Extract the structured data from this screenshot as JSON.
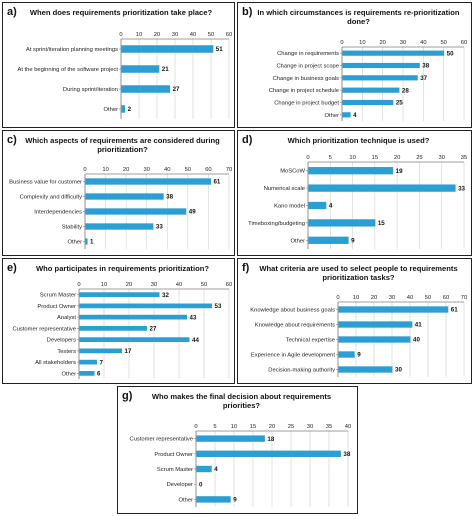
{
  "colors": {
    "bar": "#2b9fd3",
    "axis": "#7f7f7f",
    "border": "#222222"
  },
  "chart_data": [
    {
      "type": "bar",
      "panel": "a)",
      "title": "When does requirements prioritization take place?",
      "categories": [
        "At sprint/iteration planning meetings",
        "At the beginning of the software project",
        "During sprint/iteration",
        "Other"
      ],
      "values": [
        51,
        21,
        27,
        2
      ],
      "xlim": [
        0,
        60
      ],
      "xticks": [
        0,
        10,
        20,
        30,
        40,
        50,
        60
      ],
      "grid": true,
      "orientation": "horizontal"
    },
    {
      "type": "bar",
      "panel": "b)",
      "title": "In which circumstances is requirements re-prioritization done?",
      "categories": [
        "Change in requirements",
        "Change in project scope",
        "Change in business goals",
        "Change in project schedule",
        "Change in project budget",
        "Other"
      ],
      "values": [
        50,
        38,
        37,
        28,
        25,
        4
      ],
      "xlim": [
        0,
        60
      ],
      "xticks": [
        0,
        10,
        20,
        30,
        40,
        50,
        60
      ],
      "grid": true,
      "orientation": "horizontal"
    },
    {
      "type": "bar",
      "panel": "c)",
      "title": "Which aspects of requirements are considered during prioritization?",
      "categories": [
        "Business value for customer",
        "Complexity and difficulty",
        "Interdependencies",
        "Stability",
        "Other"
      ],
      "values": [
        61,
        38,
        49,
        33,
        1
      ],
      "xlim": [
        0,
        70
      ],
      "xticks": [
        0,
        10,
        20,
        30,
        40,
        50,
        60,
        70
      ],
      "grid": true,
      "orientation": "horizontal"
    },
    {
      "type": "bar",
      "panel": "d)",
      "title": "Which prioritization technique is used?",
      "categories": [
        "MoSCoW",
        "Numerical scale",
        "Kano model",
        "Timeboxing/budgeting",
        "Other"
      ],
      "values": [
        19,
        33,
        4,
        15,
        9
      ],
      "xlim": [
        0,
        35
      ],
      "xticks": [
        0,
        5,
        10,
        15,
        20,
        25,
        30,
        35
      ],
      "grid": true,
      "orientation": "horizontal"
    },
    {
      "type": "bar",
      "panel": "e)",
      "title": "Who participates in requirements prioritization?",
      "categories": [
        "Scrum Master",
        "Product Owner",
        "Analyst",
        "Customer representative",
        "Developers",
        "Testers",
        "All stakeholders",
        "Other"
      ],
      "values": [
        32,
        53,
        43,
        27,
        44,
        17,
        7,
        6
      ],
      "xlim": [
        0,
        60
      ],
      "xticks": [
        0,
        10,
        20,
        30,
        40,
        50,
        60
      ],
      "grid": true,
      "orientation": "horizontal"
    },
    {
      "type": "bar",
      "panel": "f)",
      "title": "What criteria are used to select people to requirements prioritization tasks?",
      "categories": [
        "Knowledge about business goals",
        "Knowledge about requirements",
        "Technical expertise",
        "Experience in Agile development",
        "Decision-making authority"
      ],
      "values": [
        61,
        41,
        40,
        9,
        30
      ],
      "xlim": [
        0,
        70
      ],
      "xticks": [
        0,
        10,
        20,
        30,
        40,
        50,
        60,
        70
      ],
      "grid": true,
      "orientation": "horizontal"
    },
    {
      "type": "bar",
      "panel": "g)",
      "title": "Who makes the final decision about requirements priorities?",
      "categories": [
        "Customer representative",
        "Product Owner",
        "Scrum Master",
        "Developer",
        "Other"
      ],
      "values": [
        18,
        38,
        4,
        0,
        9
      ],
      "xlim": [
        0,
        40
      ],
      "xticks": [
        0,
        5,
        10,
        15,
        20,
        25,
        30,
        35,
        40
      ],
      "grid": true,
      "orientation": "horizontal"
    }
  ]
}
